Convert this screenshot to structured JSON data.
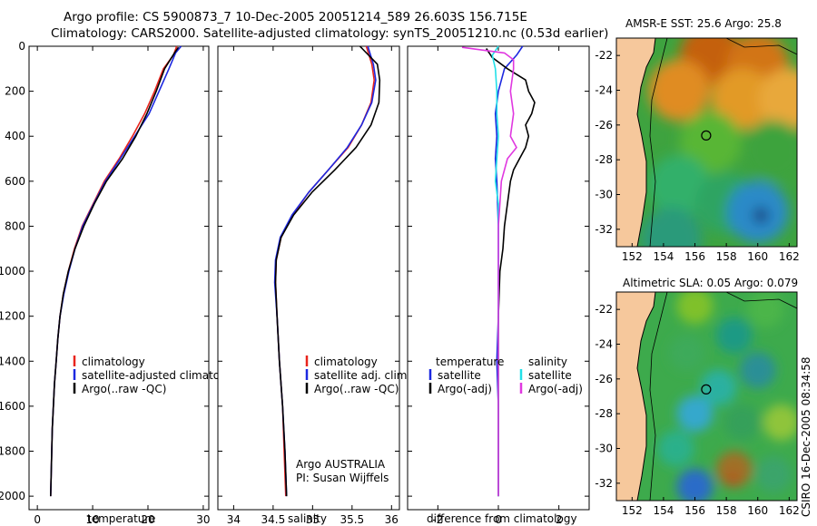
{
  "header": {
    "line1": "Argo profile: CS 5900873_7 10-Dec-2005 20051214_589 26.603S 156.715E",
    "line2": "Climatology: CARS2000. Satellite-adjusted climatology: synTS_20051210.nc (0.53d earlier)"
  },
  "side_label": "CSIRO 16-Dec-2005 08:34:58",
  "panel_notes": {
    "line1": "Argo AUSTRALIA",
    "line2": "PI: Susan Wijffels"
  },
  "colors": {
    "climatology": "#e8241c",
    "satellite": "#1c28e0",
    "argo": "#000000",
    "cyan": "#22e0e8",
    "magenta": "#e038e0",
    "land": "#f6c89c"
  },
  "chart_data": [
    {
      "type": "line",
      "name": "temperature-profile",
      "xlabel": "temperature",
      "ylabel": "",
      "xlim": [
        -1.5,
        31
      ],
      "ylim": [
        2060,
        0
      ],
      "xticks": [
        0,
        10,
        20,
        30
      ],
      "yticks": [
        0,
        200,
        400,
        600,
        800,
        1000,
        1200,
        1400,
        1600,
        1800,
        2000
      ],
      "legend": [
        "climatology",
        "satellite-adjusted climatology",
        "Argo(..raw -QC)"
      ],
      "series": [
        {
          "name": "climatology",
          "color": "#e8241c",
          "points": [
            [
              25.2,
              0
            ],
            [
              24.6,
              40
            ],
            [
              22.8,
              100
            ],
            [
              21.2,
              200
            ],
            [
              19.4,
              300
            ],
            [
              17.2,
              400
            ],
            [
              14.8,
              500
            ],
            [
              12.1,
              600
            ],
            [
              10.1,
              700
            ],
            [
              8.1,
              800
            ],
            [
              6.7,
              900
            ],
            [
              5.6,
              1000
            ],
            [
              4.7,
              1100
            ],
            [
              4.1,
              1200
            ],
            [
              3.7,
              1300
            ],
            [
              3.4,
              1400
            ],
            [
              3.1,
              1500
            ],
            [
              2.9,
              1600
            ],
            [
              2.7,
              1700
            ],
            [
              2.6,
              1800
            ],
            [
              2.5,
              1900
            ],
            [
              2.4,
              2000
            ]
          ]
        },
        {
          "name": "satellite-adjusted climatology",
          "color": "#1c28e0",
          "points": [
            [
              26.0,
              0
            ],
            [
              25.0,
              30
            ],
            [
              23.8,
              100
            ],
            [
              22.0,
              200
            ],
            [
              20.2,
              300
            ],
            [
              17.6,
              400
            ],
            [
              15.0,
              500
            ],
            [
              12.3,
              600
            ],
            [
              10.2,
              700
            ],
            [
              8.2,
              800
            ],
            [
              6.8,
              900
            ],
            [
              5.7,
              1000
            ],
            [
              4.8,
              1100
            ],
            [
              4.1,
              1200
            ],
            [
              3.7,
              1300
            ],
            [
              3.4,
              1400
            ],
            [
              3.1,
              1500
            ],
            [
              2.9,
              1600
            ],
            [
              2.7,
              1700
            ],
            [
              2.6,
              1800
            ],
            [
              2.5,
              1900
            ],
            [
              2.4,
              2000
            ]
          ]
        },
        {
          "name": "Argo(..raw -QC)",
          "color": "#000000",
          "points": [
            [
              25.5,
              5
            ],
            [
              24.8,
              30
            ],
            [
              23.0,
              100
            ],
            [
              21.5,
              200
            ],
            [
              19.8,
              300
            ],
            [
              17.8,
              400
            ],
            [
              15.4,
              500
            ],
            [
              12.5,
              600
            ],
            [
              10.3,
              700
            ],
            [
              8.4,
              800
            ],
            [
              6.8,
              900
            ],
            [
              5.6,
              1000
            ],
            [
              4.7,
              1100
            ],
            [
              4.1,
              1200
            ],
            [
              3.7,
              1300
            ],
            [
              3.4,
              1400
            ],
            [
              3.1,
              1500
            ],
            [
              2.9,
              1600
            ],
            [
              2.7,
              1700
            ],
            [
              2.6,
              1800
            ],
            [
              2.5,
              1900
            ],
            [
              2.4,
              2000
            ]
          ]
        }
      ]
    },
    {
      "type": "line",
      "name": "salinity-profile",
      "xlabel": "salinity",
      "ylabel": "",
      "xlim": [
        33.8,
        36.1
      ],
      "ylim": [
        2060,
        0
      ],
      "xticks": [
        34,
        34.5,
        35,
        35.5,
        36
      ],
      "yticks": [
        0,
        200,
        400,
        600,
        800,
        1000,
        1200,
        1400,
        1600,
        1800,
        2000
      ],
      "legend": [
        "climatology",
        "satellite adj. clim.",
        "Argo(..raw -QC)"
      ],
      "series": [
        {
          "name": "climatology",
          "color": "#e8241c",
          "points": [
            [
              35.68,
              0
            ],
            [
              35.75,
              80
            ],
            [
              35.78,
              150
            ],
            [
              35.74,
              250
            ],
            [
              35.62,
              350
            ],
            [
              35.45,
              450
            ],
            [
              35.2,
              550
            ],
            [
              34.95,
              650
            ],
            [
              34.75,
              750
            ],
            [
              34.6,
              850
            ],
            [
              34.54,
              950
            ],
            [
              34.53,
              1050
            ],
            [
              34.55,
              1200
            ],
            [
              34.58,
              1400
            ],
            [
              34.62,
              1600
            ],
            [
              34.64,
              1800
            ],
            [
              34.66,
              2000
            ]
          ]
        },
        {
          "name": "satellite adj. clim.",
          "color": "#1c28e0",
          "points": [
            [
              35.7,
              0
            ],
            [
              35.77,
              80
            ],
            [
              35.8,
              150
            ],
            [
              35.75,
              250
            ],
            [
              35.62,
              350
            ],
            [
              35.44,
              450
            ],
            [
              35.2,
              550
            ],
            [
              34.95,
              650
            ],
            [
              34.74,
              750
            ],
            [
              34.59,
              850
            ],
            [
              34.53,
              950
            ],
            [
              34.52,
              1050
            ],
            [
              34.55,
              1200
            ],
            [
              34.58,
              1400
            ],
            [
              34.62,
              1600
            ],
            [
              34.65,
              1800
            ],
            [
              34.67,
              2000
            ]
          ]
        },
        {
          "name": "Argo(..raw -QC)",
          "color": "#000000",
          "points": [
            [
              35.6,
              0
            ],
            [
              35.82,
              80
            ],
            [
              35.85,
              150
            ],
            [
              35.84,
              250
            ],
            [
              35.74,
              350
            ],
            [
              35.55,
              450
            ],
            [
              35.28,
              550
            ],
            [
              34.99,
              650
            ],
            [
              34.76,
              750
            ],
            [
              34.6,
              850
            ],
            [
              34.54,
              950
            ],
            [
              34.53,
              1050
            ],
            [
              34.55,
              1200
            ],
            [
              34.58,
              1400
            ],
            [
              34.62,
              1600
            ],
            [
              34.65,
              1800
            ],
            [
              34.67,
              2000
            ]
          ]
        }
      ]
    },
    {
      "type": "line",
      "name": "difference-profile",
      "xlabel": "difference from climatology",
      "ylabel": "",
      "xlim": [
        -3,
        3
      ],
      "ylim": [
        2060,
        0
      ],
      "xticks": [
        -2,
        0,
        2
      ],
      "yticks": [
        0,
        200,
        400,
        600,
        800,
        1000,
        1200,
        1400,
        1600,
        1800,
        2000
      ],
      "legend_headers": [
        "temperature",
        "salinity"
      ],
      "legend": [
        "satellite",
        "Argo(-adj)",
        "satellite",
        "Argo(-adj)"
      ],
      "series": [
        {
          "name": "temperature satellite",
          "color": "#1c28e0",
          "points": [
            [
              0.8,
              0
            ],
            [
              0.6,
              40
            ],
            [
              0.2,
              100
            ],
            [
              0.0,
              200
            ],
            [
              -0.1,
              300
            ],
            [
              -0.05,
              400
            ],
            [
              -0.1,
              500
            ],
            [
              -0.05,
              600
            ],
            [
              0.0,
              800
            ],
            [
              0.0,
              1000
            ],
            [
              0.0,
              1200
            ],
            [
              -0.05,
              1400
            ],
            [
              0.0,
              1600
            ],
            [
              0.0,
              1800
            ],
            [
              0.0,
              2000
            ]
          ]
        },
        {
          "name": "temperature Argo(-adj)",
          "color": "#000000",
          "points": [
            [
              -0.4,
              10
            ],
            [
              -0.2,
              50
            ],
            [
              0.3,
              100
            ],
            [
              0.9,
              150
            ],
            [
              1.0,
              200
            ],
            [
              1.2,
              250
            ],
            [
              1.1,
              300
            ],
            [
              0.9,
              350
            ],
            [
              1.0,
              400
            ],
            [
              0.9,
              450
            ],
            [
              0.7,
              500
            ],
            [
              0.5,
              550
            ],
            [
              0.4,
              600
            ],
            [
              0.3,
              700
            ],
            [
              0.2,
              800
            ],
            [
              0.15,
              900
            ],
            [
              0.05,
              1000
            ],
            [
              0.0,
              1200
            ],
            [
              0.0,
              1400
            ],
            [
              0.0,
              1600
            ],
            [
              0.0,
              1800
            ],
            [
              0.0,
              2000
            ]
          ]
        },
        {
          "name": "salinity satellite",
          "color": "#22e0e8",
          "points": [
            [
              0.0,
              0
            ],
            [
              -0.2,
              40
            ],
            [
              -0.1,
              100
            ],
            [
              -0.05,
              200
            ],
            [
              -0.05,
              300
            ],
            [
              0.0,
              400
            ],
            [
              -0.05,
              500
            ],
            [
              -0.1,
              600
            ],
            [
              0.0,
              700
            ],
            [
              0.0,
              800
            ],
            [
              0.0,
              1000
            ],
            [
              0.0,
              1200
            ],
            [
              0.0,
              1400
            ],
            [
              0.0,
              1600
            ],
            [
              0.0,
              1800
            ],
            [
              0.0,
              2000
            ]
          ]
        },
        {
          "name": "salinity Argo(-adj)",
          "color": "#e038e0",
          "points": [
            [
              -1.2,
              5
            ],
            [
              0.2,
              30
            ],
            [
              0.5,
              60
            ],
            [
              0.5,
              100
            ],
            [
              0.4,
              200
            ],
            [
              0.5,
              300
            ],
            [
              0.4,
              400
            ],
            [
              0.6,
              450
            ],
            [
              0.3,
              500
            ],
            [
              0.1,
              600
            ],
            [
              0.05,
              700
            ],
            [
              0.0,
              800
            ],
            [
              0.0,
              1000
            ],
            [
              0.0,
              1200
            ],
            [
              0.0,
              1400
            ],
            [
              0.0,
              1600
            ],
            [
              0.0,
              1800
            ],
            [
              0.0,
              2000
            ]
          ]
        }
      ]
    },
    {
      "type": "heatmap",
      "name": "sst-map",
      "title": "AMSR-E SST: 25.6 Argo: 25.8",
      "xlim": [
        151,
        162.5
      ],
      "ylim": [
        -33,
        -21
      ],
      "xticks": [
        152,
        154,
        156,
        158,
        160,
        162
      ],
      "yticks": [
        -22,
        -24,
        -26,
        -28,
        -30,
        -32
      ],
      "marker": {
        "lon": 156.715,
        "lat": -26.603
      },
      "blobs": [
        {
          "lon": 157,
          "lat": -22,
          "color": "#c4600c"
        },
        {
          "lon": 160,
          "lat": -22.5,
          "color": "#d27414"
        },
        {
          "lon": 155,
          "lat": -24,
          "color": "#e08c20"
        },
        {
          "lon": 159,
          "lat": -24.5,
          "color": "#e29a28"
        },
        {
          "lon": 162,
          "lat": -24.5,
          "color": "#e8a83a"
        },
        {
          "lon": 157,
          "lat": -27,
          "color": "#58b634"
        },
        {
          "lon": 161,
          "lat": -27.5,
          "color": "#3ca33e"
        },
        {
          "lon": 155,
          "lat": -29.5,
          "color": "#30b06a"
        },
        {
          "lon": 158,
          "lat": -30.5,
          "color": "#2ea462"
        },
        {
          "lon": 160,
          "lat": -31,
          "color": "#2b8ac8"
        },
        {
          "lon": 160.2,
          "lat": -31.2,
          "color": "#13236e"
        },
        {
          "lon": 154.5,
          "lat": -32.5,
          "color": "#2a9a7a"
        }
      ]
    },
    {
      "type": "heatmap",
      "name": "sla-map",
      "title": "Altimetric SLA: 0.05 Argo: 0.079",
      "xlim": [
        151,
        162.5
      ],
      "ylim": [
        -33,
        -21
      ],
      "xticks": [
        152,
        154,
        156,
        158,
        160,
        162
      ],
      "yticks": [
        -22,
        -24,
        -26,
        -28,
        -30,
        -32
      ],
      "marker": {
        "lon": 156.715,
        "lat": -26.603
      },
      "blobs": [
        {
          "lon": 156,
          "lat": -21.8,
          "color": "#7fc12a"
        },
        {
          "lon": 160.5,
          "lat": -22,
          "color": "#4bb548"
        },
        {
          "lon": 158.5,
          "lat": -23.5,
          "color": "#1f9a84"
        },
        {
          "lon": 155.5,
          "lat": -24.5,
          "color": "#3eaa5a"
        },
        {
          "lon": 160,
          "lat": -25.5,
          "color": "#2a8f96"
        },
        {
          "lon": 157.5,
          "lat": -26.5,
          "color": "#2cb0a0"
        },
        {
          "lon": 156,
          "lat": -28,
          "color": "#34a8cc"
        },
        {
          "lon": 159,
          "lat": -28.5,
          "color": "#35a05a"
        },
        {
          "lon": 161.5,
          "lat": -28.5,
          "color": "#8fc43a"
        },
        {
          "lon": 154.8,
          "lat": -30,
          "color": "#2bb08a"
        },
        {
          "lon": 158.5,
          "lat": -31.2,
          "color": "#a07028"
        },
        {
          "lon": 158.4,
          "lat": -31.8,
          "color": "#b05a20"
        },
        {
          "lon": 156,
          "lat": -32.2,
          "color": "#2a6cc8"
        },
        {
          "lon": 161,
          "lat": -31.5,
          "color": "#3aa46a"
        }
      ]
    }
  ]
}
